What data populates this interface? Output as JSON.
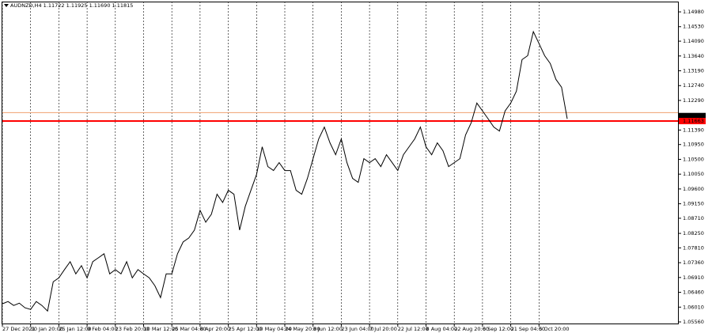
{
  "chart_data": {
    "type": "line",
    "title": "AUDNZD,H4  1.11722 1.11925 1.11690 1.11815",
    "categories": [
      "27 Dec 2021",
      null,
      null,
      null,
      null,
      "10 Jan 20:00",
      null,
      null,
      null,
      null,
      "25 Jan 12:00",
      null,
      null,
      null,
      null,
      "9 Feb 04:00",
      null,
      null,
      null,
      null,
      "23 Feb 20:00",
      null,
      null,
      null,
      null,
      "10 Mar 12:00",
      null,
      null,
      null,
      null,
      "25 Mar 04:00",
      null,
      null,
      null,
      null,
      "8 Apr 20:00",
      null,
      null,
      null,
      null,
      "25 Apr 12:00",
      null,
      null,
      null,
      null,
      "10 May 04:00",
      null,
      null,
      null,
      null,
      "24 May 20:00",
      null,
      null,
      null,
      null,
      "8 Jun 12:00",
      null,
      null,
      null,
      null,
      "23 Jun 04:00",
      null,
      null,
      null,
      null,
      "7 Jul 20:00",
      null,
      null,
      null,
      null,
      "22 Jul 12:00",
      null,
      null,
      null,
      null,
      "8 Aug 04:00",
      null,
      null,
      null,
      null,
      "22 Aug 20:00",
      null,
      null,
      null,
      null,
      "6 Sep 12:00",
      null,
      null,
      null,
      null,
      "21 Sep 04:00",
      null,
      null,
      null,
      null,
      "5 Oct 20:00",
      null,
      null,
      null,
      null,
      null
    ],
    "values": [
      1.0611,
      1.0618,
      1.0606,
      1.0613,
      1.0599,
      1.0594,
      1.0618,
      1.0606,
      1.0589,
      1.0678,
      1.069,
      1.0715,
      1.0739,
      1.0702,
      1.0727,
      1.069,
      1.0739,
      1.0751,
      1.0763,
      1.0702,
      1.0715,
      1.0702,
      1.0739,
      1.069,
      1.0715,
      1.0702,
      1.069,
      1.0666,
      1.063,
      1.0702,
      1.0702,
      1.0763,
      1.0799,
      1.0811,
      1.0835,
      1.0895,
      1.0859,
      1.0883,
      1.0944,
      1.0919,
      1.0956,
      1.0944,
      1.0835,
      1.0907,
      1.0956,
      1.1004,
      1.1088,
      1.1028,
      1.1016,
      1.104,
      1.1016,
      1.1016,
      1.0956,
      1.0944,
      1.0992,
      1.1052,
      1.1112,
      1.1148,
      1.11,
      1.1064,
      1.1112,
      1.104,
      1.0992,
      1.098,
      1.1052,
      1.104,
      1.1052,
      1.1028,
      1.1064,
      1.104,
      1.1016,
      1.1064,
      1.1088,
      1.1112,
      1.1148,
      1.1088,
      1.1064,
      1.11,
      1.1076,
      1.1028,
      1.104,
      1.1052,
      1.1124,
      1.1161,
      1.1221,
      1.1197,
      1.1173,
      1.1148,
      1.1136,
      1.1197,
      1.1221,
      1.1257,
      1.1353,
      1.1365,
      1.1438,
      1.1402,
      1.1365,
      1.1341,
      1.1293,
      1.1269,
      1.1173
    ],
    "color": "#000000",
    "ylim": [
      1.05488,
      1.15293
    ],
    "yticks": [
      {
        "value": 1.1498,
        "label": "1.14980"
      },
      {
        "value": 1.1453,
        "label": "1.14530"
      },
      {
        "value": 1.1409,
        "label": "1.14090"
      },
      {
        "value": 1.1364,
        "label": "1.13640"
      },
      {
        "value": 1.1319,
        "label": "1.13190"
      },
      {
        "value": 1.1274,
        "label": "1.12740"
      },
      {
        "value": 1.1229,
        "label": "1.12290"
      },
      {
        "value": 1.1139,
        "label": "1.11390"
      },
      {
        "value": 1.1095,
        "label": "1.10950"
      },
      {
        "value": 1.105,
        "label": "1.10500"
      },
      {
        "value": 1.1005,
        "label": "1.10050"
      },
      {
        "value": 1.096,
        "label": "1.09600"
      },
      {
        "value": 1.0915,
        "label": "1.09150"
      },
      {
        "value": 1.0871,
        "label": "1.08710"
      },
      {
        "value": 1.0825,
        "label": "1.08250"
      },
      {
        "value": 1.0781,
        "label": "1.07810"
      },
      {
        "value": 1.0736,
        "label": "1.07360"
      },
      {
        "value": 1.0691,
        "label": "1.06910"
      },
      {
        "value": 1.0646,
        "label": "1.06460"
      },
      {
        "value": 1.0601,
        "label": "1.06010"
      },
      {
        "value": 1.0556,
        "label": "1.05560"
      }
    ],
    "grid": true,
    "levels": [
      {
        "value": 1.1192,
        "color": "#f0a070"
      },
      {
        "value": 1.11663,
        "color": "#ff0000"
      }
    ],
    "price_labels": [
      {
        "value": 1.11815,
        "color": "#000000"
      },
      {
        "value": 1.11663,
        "color": "#ff0000"
      }
    ]
  }
}
